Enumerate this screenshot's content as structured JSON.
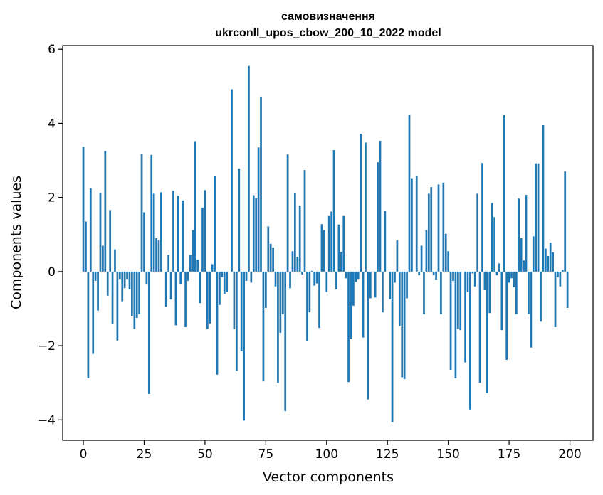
{
  "chart_data": {
    "type": "bar",
    "title": "самовизначення",
    "subtitle": "ukrconll_upos_cbow_200_10_2022 model",
    "xlabel": "Vector components",
    "ylabel": "Components values",
    "xlim": [
      -8.5,
      209.5
    ],
    "ylim": [
      -4.55,
      6.1
    ],
    "xticks": [
      0,
      25,
      50,
      75,
      100,
      125,
      150,
      175,
      200
    ],
    "xtick_labels": [
      "0",
      "25",
      "50",
      "75",
      "100",
      "125",
      "150",
      "175",
      "200"
    ],
    "yticks": [
      -4,
      -2,
      0,
      2,
      4,
      6
    ],
    "ytick_labels": [
      "−4",
      "−2",
      "0",
      "2",
      "4",
      "6"
    ],
    "grid": false,
    "bar_color": "#1f77b4",
    "x": [
      0,
      1,
      2,
      3,
      4,
      5,
      6,
      7,
      8,
      9,
      10,
      11,
      12,
      13,
      14,
      15,
      16,
      17,
      18,
      19,
      20,
      21,
      22,
      23,
      24,
      25,
      26,
      27,
      28,
      29,
      30,
      31,
      32,
      33,
      34,
      35,
      36,
      37,
      38,
      39,
      40,
      41,
      42,
      43,
      44,
      45,
      46,
      47,
      48,
      49,
      50,
      51,
      52,
      53,
      54,
      55,
      56,
      57,
      58,
      59,
      60,
      61,
      62,
      63,
      64,
      65,
      66,
      67,
      68,
      69,
      70,
      71,
      72,
      73,
      74,
      75,
      76,
      77,
      78,
      79,
      80,
      81,
      82,
      83,
      84,
      85,
      86,
      87,
      88,
      89,
      90,
      91,
      92,
      93,
      94,
      95,
      96,
      97,
      98,
      99,
      100,
      101,
      102,
      103,
      104,
      105,
      106,
      107,
      108,
      109,
      110,
      111,
      112,
      113,
      114,
      115,
      116,
      117,
      118,
      119,
      120,
      121,
      122,
      123,
      124,
      125,
      126,
      127,
      128,
      129,
      130,
      131,
      132,
      133,
      134,
      135,
      136,
      137,
      138,
      139,
      140,
      141,
      142,
      143,
      144,
      145,
      146,
      147,
      148,
      149,
      150,
      151,
      152,
      153,
      154,
      155,
      156,
      157,
      158,
      159,
      160,
      161,
      162,
      163,
      164,
      165,
      166,
      167,
      168,
      169,
      170,
      171,
      172,
      173,
      174,
      175,
      176,
      177,
      178,
      179,
      180,
      181,
      182,
      183,
      184,
      185,
      186,
      187,
      188,
      189,
      190,
      191,
      192,
      193,
      194,
      195,
      196,
      197,
      198,
      199
    ],
    "values": [
      3.37,
      1.35,
      -2.88,
      2.25,
      -2.22,
      -0.25,
      -1.05,
      2.12,
      0.7,
      3.25,
      -0.65,
      1.66,
      -1.42,
      0.6,
      -1.86,
      -0.2,
      -0.8,
      -0.45,
      -0.2,
      -0.48,
      -1.2,
      -1.55,
      -1.25,
      -1.15,
      3.18,
      1.6,
      -0.35,
      -3.3,
      3.15,
      2.1,
      0.9,
      0.85,
      2.14,
      0.0,
      -0.95,
      0.45,
      -0.75,
      2.18,
      -1.45,
      2.05,
      -0.35,
      1.92,
      -1.5,
      -0.25,
      0.45,
      1.12,
      3.52,
      0.32,
      -0.85,
      1.72,
      2.2,
      -1.55,
      -1.4,
      0.2,
      2.57,
      -2.78,
      -0.9,
      -0.15,
      -0.6,
      -0.55,
      0.0,
      4.92,
      -1.55,
      -2.68,
      2.78,
      -2.15,
      -4.02,
      -0.25,
      5.55,
      -0.3,
      2.06,
      1.98,
      3.35,
      4.72,
      -2.96,
      -0.98,
      1.22,
      0.75,
      0.65,
      -0.4,
      -3.0,
      -1.65,
      -1.15,
      -3.76,
      3.16,
      -0.45,
      0.55,
      2.11,
      0.4,
      1.78,
      -0.08,
      2.74,
      -1.88,
      -1.1,
      0.02,
      -0.38,
      -0.32,
      -1.52,
      1.28,
      1.12,
      -0.55,
      1.5,
      1.62,
      3.28,
      -0.48,
      1.27,
      0.53,
      1.5,
      -0.18,
      -2.98,
      -1.82,
      -0.92,
      -0.28,
      -0.2,
      3.72,
      -1.78,
      3.48,
      -3.45,
      -0.72,
      0.0,
      -0.7,
      2.95,
      3.53,
      -1.1,
      1.64,
      0.0,
      -0.75,
      -4.07,
      -0.3,
      0.85,
      -1.48,
      -2.85,
      -2.9,
      -0.72,
      4.23,
      2.52,
      0.0,
      2.58,
      -0.1,
      0.7,
      -1.15,
      1.12,
      2.1,
      2.28,
      -0.1,
      -0.22,
      2.35,
      -1.15,
      2.4,
      1.02,
      0.55,
      -2.65,
      -0.25,
      -2.88,
      -1.55,
      -1.58,
      0.0,
      -2.45,
      -0.55,
      -3.72,
      -0.05,
      -0.4,
      2.1,
      -3.0,
      2.93,
      -0.5,
      -3.28,
      -1.12,
      1.85,
      1.47,
      -0.1,
      0.22,
      -1.58,
      4.22,
      -2.38,
      -0.3,
      -0.18,
      -0.42,
      -1.15,
      1.97,
      0.9,
      0.3,
      2.07,
      -1.15,
      -2.05,
      0.95,
      2.92,
      2.92,
      -1.35,
      3.95,
      0.62,
      0.42,
      0.78,
      0.52,
      -1.5,
      -0.15,
      -0.4,
      0.05,
      2.7,
      -0.98
    ]
  }
}
